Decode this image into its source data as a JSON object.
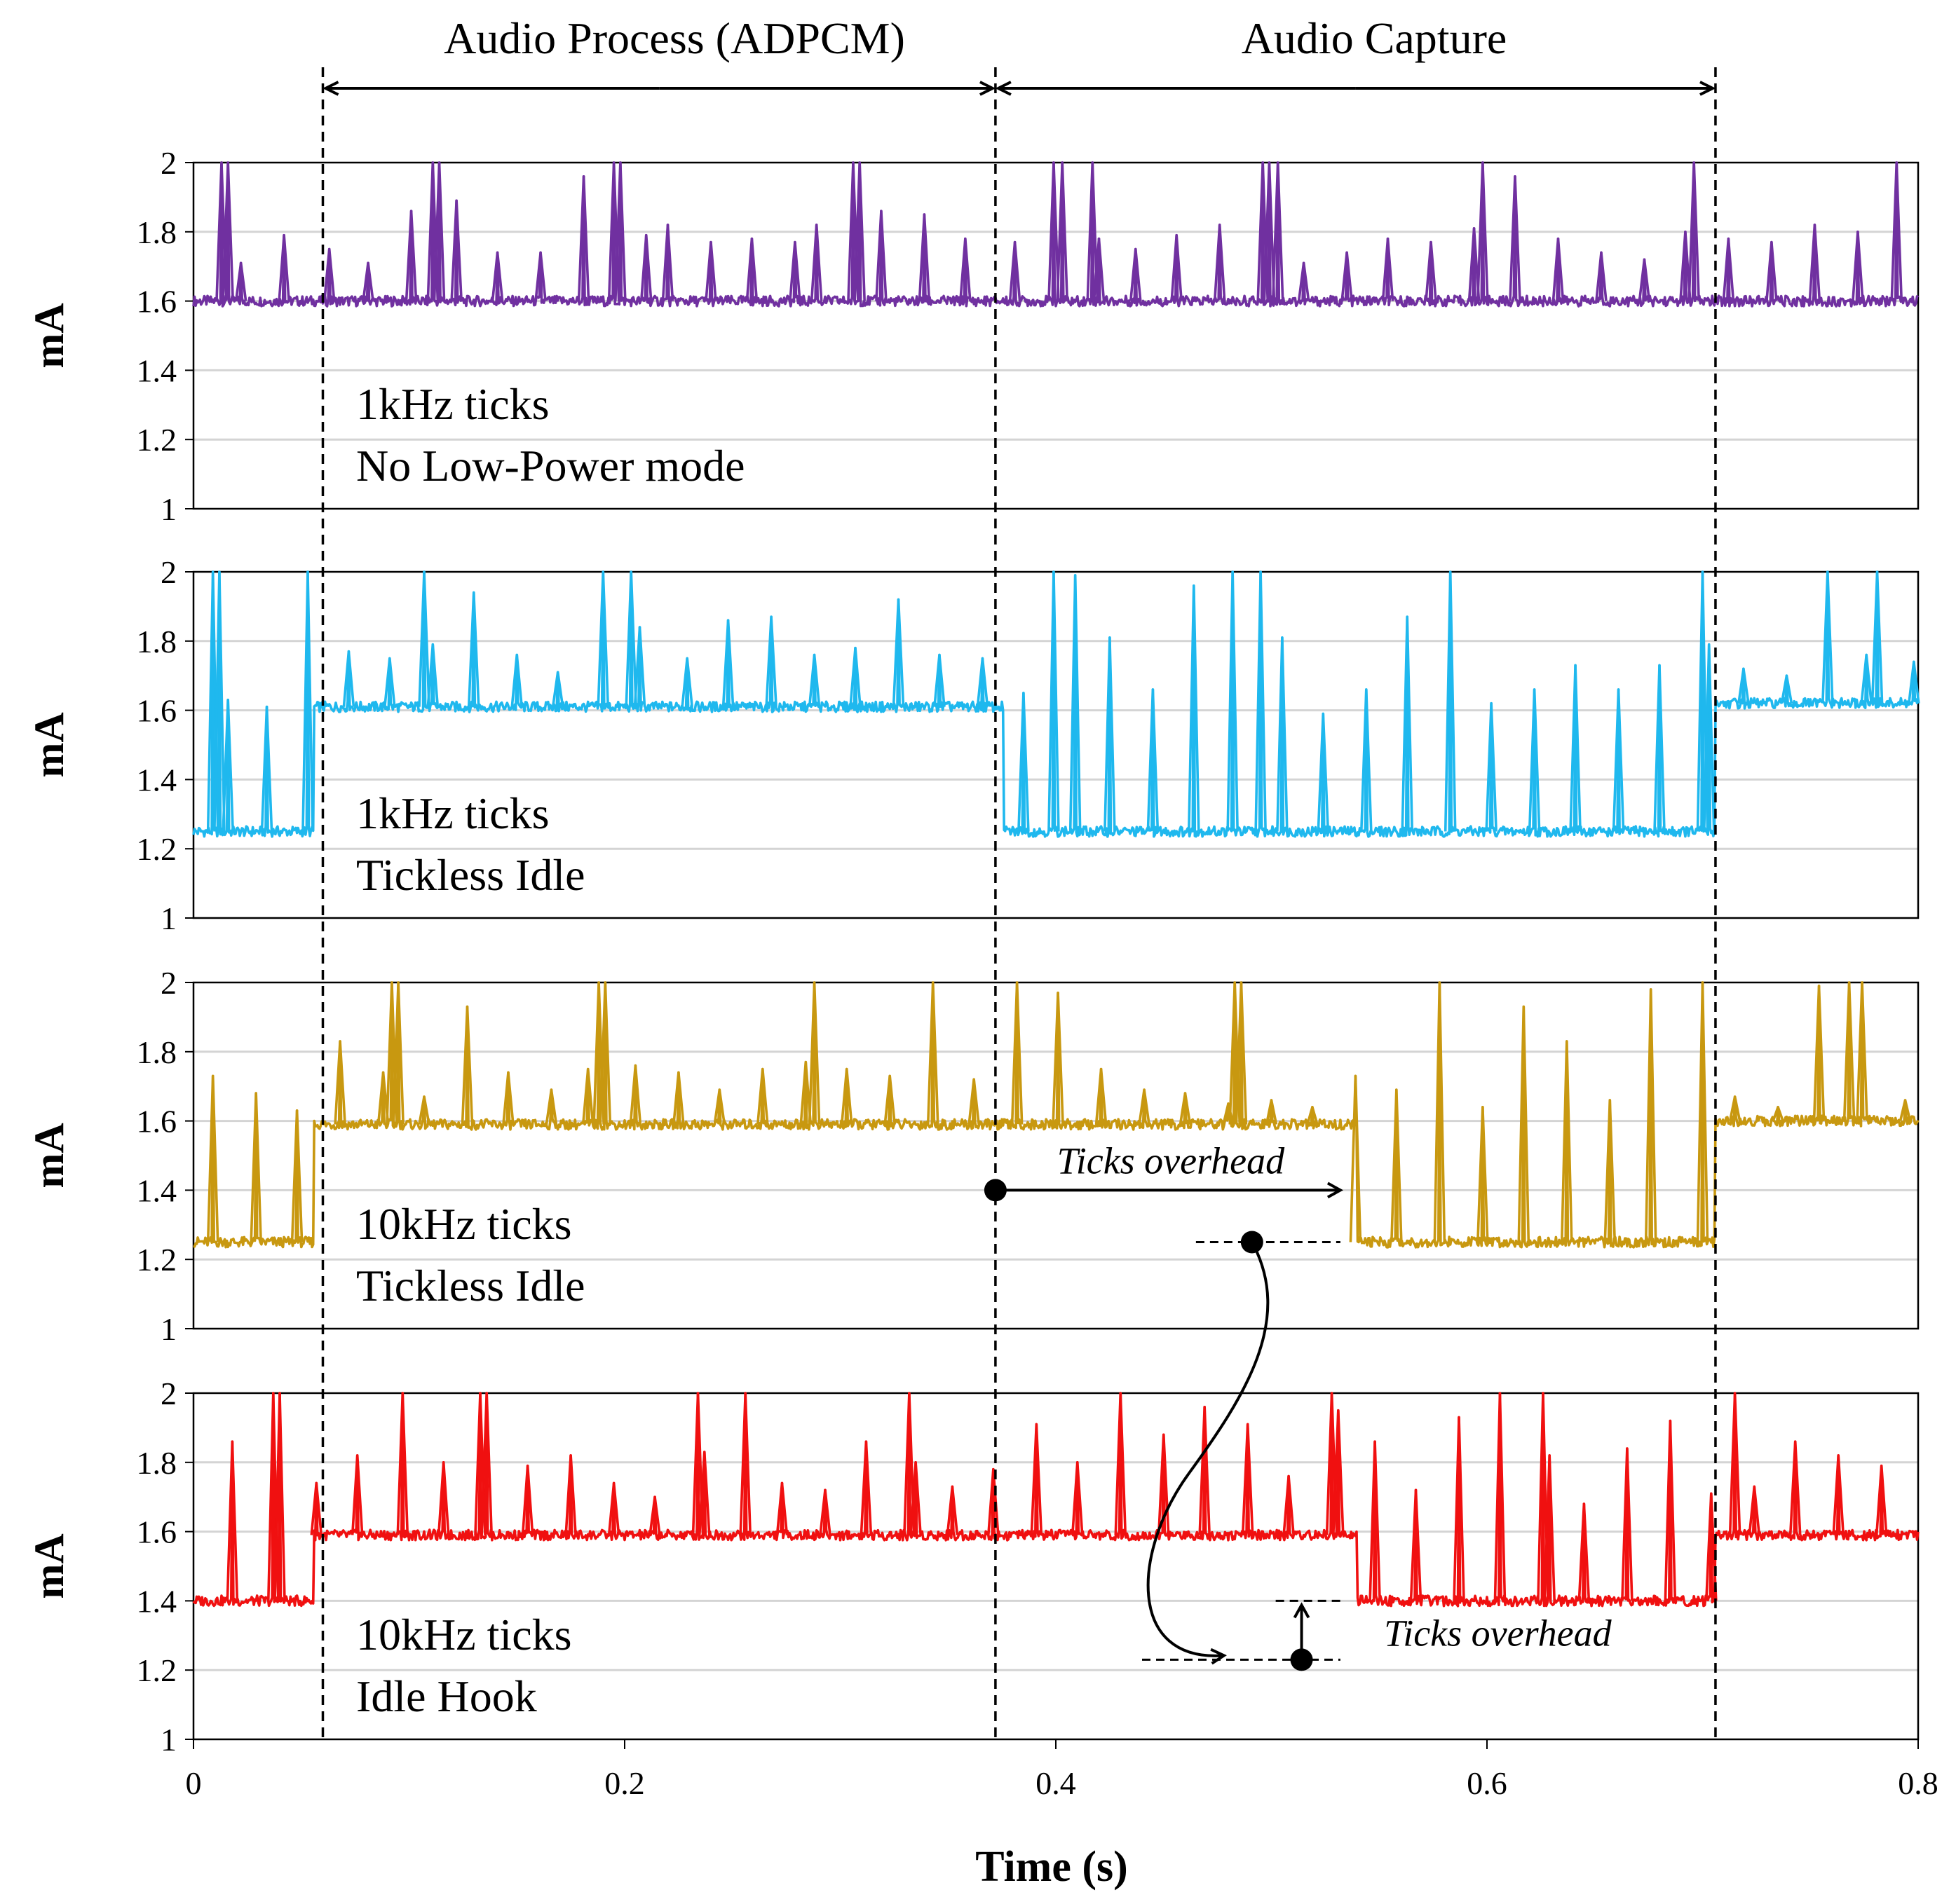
{
  "chart_data": {
    "type": "line",
    "xlabel": "Time (s)",
    "xlim": [
      0,
      0.8
    ],
    "xticks": [
      "0",
      "0.2",
      "0.4",
      "0.6",
      "0.8"
    ],
    "xtick_values": [
      0,
      0.2,
      0.4,
      0.6,
      0.8
    ],
    "ylabel": "mA",
    "ylim": [
      1,
      2
    ],
    "yticks": [
      "1",
      "1.2",
      "1.4",
      "1.6",
      "1.8",
      "2"
    ],
    "ytick_values": [
      1,
      1.2,
      1.4,
      1.6,
      1.8,
      2
    ],
    "grid": true,
    "phases": [
      {
        "label": "Audio Process (ADPCM)",
        "start": 0.06,
        "end": 0.372
      },
      {
        "label": "Audio Capture",
        "start": 0.372,
        "end": 0.706
      }
    ],
    "panels": [
      {
        "line1": "1kHz ticks",
        "line2": "No Low-Power mode",
        "color": "#7030a0",
        "segments": [
          {
            "start": 0,
            "end": 0.8,
            "base": 1.6
          }
        ],
        "spikes": [
          {
            "t": 0.013,
            "h": 2.0
          },
          {
            "t": 0.016,
            "h": 2.0
          },
          {
            "t": 0.022,
            "h": 1.71
          },
          {
            "t": 0.042,
            "h": 1.79
          },
          {
            "t": 0.063,
            "h": 1.75
          },
          {
            "t": 0.081,
            "h": 1.71
          },
          {
            "t": 0.101,
            "h": 1.86
          },
          {
            "t": 0.111,
            "h": 2.0
          },
          {
            "t": 0.114,
            "h": 2.0
          },
          {
            "t": 0.122,
            "h": 1.89
          },
          {
            "t": 0.141,
            "h": 1.74
          },
          {
            "t": 0.161,
            "h": 1.74
          },
          {
            "t": 0.181,
            "h": 1.96
          },
          {
            "t": 0.195,
            "h": 2.0
          },
          {
            "t": 0.198,
            "h": 2.0
          },
          {
            "t": 0.21,
            "h": 1.79
          },
          {
            "t": 0.22,
            "h": 1.82
          },
          {
            "t": 0.24,
            "h": 1.77
          },
          {
            "t": 0.259,
            "h": 1.78
          },
          {
            "t": 0.279,
            "h": 1.77
          },
          {
            "t": 0.289,
            "h": 1.82
          },
          {
            "t": 0.306,
            "h": 2.0
          },
          {
            "t": 0.309,
            "h": 2.0
          },
          {
            "t": 0.319,
            "h": 1.86
          },
          {
            "t": 0.339,
            "h": 1.85
          },
          {
            "t": 0.358,
            "h": 1.78
          },
          {
            "t": 0.381,
            "h": 1.77
          },
          {
            "t": 0.399,
            "h": 2.0
          },
          {
            "t": 0.403,
            "h": 2.0
          },
          {
            "t": 0.417,
            "h": 2.0
          },
          {
            "t": 0.42,
            "h": 1.78
          },
          {
            "t": 0.437,
            "h": 1.75
          },
          {
            "t": 0.456,
            "h": 1.79
          },
          {
            "t": 0.476,
            "h": 1.82
          },
          {
            "t": 0.496,
            "h": 2.0
          },
          {
            "t": 0.499,
            "h": 2.0
          },
          {
            "t": 0.503,
            "h": 2.0
          },
          {
            "t": 0.515,
            "h": 1.71
          },
          {
            "t": 0.535,
            "h": 1.74
          },
          {
            "t": 0.554,
            "h": 1.78
          },
          {
            "t": 0.574,
            "h": 1.77
          },
          {
            "t": 0.594,
            "h": 1.81
          },
          {
            "t": 0.598,
            "h": 2.0
          },
          {
            "t": 0.613,
            "h": 1.96
          },
          {
            "t": 0.633,
            "h": 1.78
          },
          {
            "t": 0.653,
            "h": 1.74
          },
          {
            "t": 0.673,
            "h": 1.72
          },
          {
            "t": 0.692,
            "h": 1.8
          },
          {
            "t": 0.696,
            "h": 2.0
          },
          {
            "t": 0.712,
            "h": 1.78
          },
          {
            "t": 0.732,
            "h": 1.77
          },
          {
            "t": 0.752,
            "h": 1.82
          },
          {
            "t": 0.772,
            "h": 1.8
          },
          {
            "t": 0.79,
            "h": 2.0
          }
        ]
      },
      {
        "line1": "1kHz ticks",
        "line2": "Tickless Idle",
        "color": "#1fb8ee",
        "segments": [
          {
            "start": 0,
            "end": 0.052,
            "base": 1.25
          },
          {
            "start": 0.056,
            "end": 0.372,
            "base": 1.61
          },
          {
            "start": 0.376,
            "end": 0.702,
            "base": 1.25
          },
          {
            "start": 0.706,
            "end": 0.8,
            "base": 1.62
          }
        ],
        "spikes": [
          {
            "t": 0.009,
            "h": 2.0
          },
          {
            "t": 0.012,
            "h": 2.0
          },
          {
            "t": 0.016,
            "h": 1.63
          },
          {
            "t": 0.034,
            "h": 1.61
          },
          {
            "t": 0.053,
            "h": 2.0
          },
          {
            "t": 0.072,
            "h": 1.77
          },
          {
            "t": 0.091,
            "h": 1.75
          },
          {
            "t": 0.107,
            "h": 2.0
          },
          {
            "t": 0.111,
            "h": 1.79
          },
          {
            "t": 0.13,
            "h": 1.94
          },
          {
            "t": 0.15,
            "h": 1.76
          },
          {
            "t": 0.169,
            "h": 1.71
          },
          {
            "t": 0.19,
            "h": 2.0
          },
          {
            "t": 0.203,
            "h": 2.0
          },
          {
            "t": 0.207,
            "h": 1.84
          },
          {
            "t": 0.229,
            "h": 1.75
          },
          {
            "t": 0.248,
            "h": 1.86
          },
          {
            "t": 0.268,
            "h": 1.87
          },
          {
            "t": 0.288,
            "h": 1.76
          },
          {
            "t": 0.307,
            "h": 1.78
          },
          {
            "t": 0.327,
            "h": 1.92
          },
          {
            "t": 0.346,
            "h": 1.76
          },
          {
            "t": 0.366,
            "h": 1.75
          },
          {
            "t": 0.385,
            "h": 1.65
          },
          {
            "t": 0.399,
            "h": 2.0
          },
          {
            "t": 0.409,
            "h": 1.99
          },
          {
            "t": 0.425,
            "h": 1.81
          },
          {
            "t": 0.445,
            "h": 1.66
          },
          {
            "t": 0.464,
            "h": 1.96
          },
          {
            "t": 0.482,
            "h": 2.0
          },
          {
            "t": 0.495,
            "h": 2.0
          },
          {
            "t": 0.505,
            "h": 1.81
          },
          {
            "t": 0.524,
            "h": 1.59
          },
          {
            "t": 0.544,
            "h": 1.66
          },
          {
            "t": 0.563,
            "h": 1.87
          },
          {
            "t": 0.583,
            "h": 2.0
          },
          {
            "t": 0.602,
            "h": 1.62
          },
          {
            "t": 0.622,
            "h": 1.66
          },
          {
            "t": 0.641,
            "h": 1.73
          },
          {
            "t": 0.661,
            "h": 1.66
          },
          {
            "t": 0.68,
            "h": 1.73
          },
          {
            "t": 0.7,
            "h": 2.0
          },
          {
            "t": 0.703,
            "h": 1.79
          },
          {
            "t": 0.719,
            "h": 1.72
          },
          {
            "t": 0.739,
            "h": 1.7
          },
          {
            "t": 0.758,
            "h": 2.0
          },
          {
            "t": 0.776,
            "h": 1.76
          },
          {
            "t": 0.781,
            "h": 2.0
          },
          {
            "t": 0.798,
            "h": 1.74
          }
        ]
      },
      {
        "line1": "10kHz ticks",
        "line2": "Tickless Idle",
        "color": "#c89810",
        "segments": [
          {
            "start": 0,
            "end": 0.052,
            "base": 1.25
          },
          {
            "start": 0.056,
            "end": 0.536,
            "base": 1.59
          },
          {
            "start": 0.54,
            "end": 0.702,
            "base": 1.25
          },
          {
            "start": 0.706,
            "end": 0.8,
            "base": 1.6
          }
        ],
        "spikes": [
          {
            "t": 0.009,
            "h": 1.73
          },
          {
            "t": 0.029,
            "h": 1.68
          },
          {
            "t": 0.048,
            "h": 1.63
          },
          {
            "t": 0.068,
            "h": 1.83
          },
          {
            "t": 0.088,
            "h": 1.74
          },
          {
            "t": 0.092,
            "h": 2.0
          },
          {
            "t": 0.095,
            "h": 2.0
          },
          {
            "t": 0.107,
            "h": 1.67
          },
          {
            "t": 0.127,
            "h": 1.93
          },
          {
            "t": 0.146,
            "h": 1.74
          },
          {
            "t": 0.166,
            "h": 1.69
          },
          {
            "t": 0.183,
            "h": 1.75
          },
          {
            "t": 0.188,
            "h": 2.0
          },
          {
            "t": 0.191,
            "h": 2.0
          },
          {
            "t": 0.205,
            "h": 1.76
          },
          {
            "t": 0.225,
            "h": 1.74
          },
          {
            "t": 0.244,
            "h": 1.69
          },
          {
            "t": 0.264,
            "h": 1.75
          },
          {
            "t": 0.284,
            "h": 1.77
          },
          {
            "t": 0.288,
            "h": 2.0
          },
          {
            "t": 0.303,
            "h": 1.75
          },
          {
            "t": 0.323,
            "h": 1.73
          },
          {
            "t": 0.343,
            "h": 2.0
          },
          {
            "t": 0.362,
            "h": 1.72
          },
          {
            "t": 0.382,
            "h": 2.0
          },
          {
            "t": 0.401,
            "h": 1.97
          },
          {
            "t": 0.421,
            "h": 1.75
          },
          {
            "t": 0.441,
            "h": 1.69
          },
          {
            "t": 0.46,
            "h": 1.68
          },
          {
            "t": 0.48,
            "h": 1.65
          },
          {
            "t": 0.483,
            "h": 2.0
          },
          {
            "t": 0.486,
            "h": 2.0
          },
          {
            "t": 0.5,
            "h": 1.66
          },
          {
            "t": 0.519,
            "h": 1.64
          },
          {
            "t": 0.539,
            "h": 1.73
          },
          {
            "t": 0.558,
            "h": 1.69
          },
          {
            "t": 0.578,
            "h": 2.0
          },
          {
            "t": 0.598,
            "h": 1.64
          },
          {
            "t": 0.617,
            "h": 1.93
          },
          {
            "t": 0.637,
            "h": 1.83
          },
          {
            "t": 0.657,
            "h": 1.66
          },
          {
            "t": 0.676,
            "h": 1.98
          },
          {
            "t": 0.7,
            "h": 2.0
          },
          {
            "t": 0.715,
            "h": 1.67
          },
          {
            "t": 0.735,
            "h": 1.64
          },
          {
            "t": 0.754,
            "h": 1.99
          },
          {
            "t": 0.768,
            "h": 2.0
          },
          {
            "t": 0.774,
            "h": 2.0
          },
          {
            "t": 0.794,
            "h": 1.66
          }
        ]
      },
      {
        "line1": "10kHz ticks",
        "line2": "Idle Hook",
        "color": "#f01010",
        "segments": [
          {
            "start": 0,
            "end": 0.052,
            "base": 1.4
          },
          {
            "start": 0.056,
            "end": 0.536,
            "base": 1.59
          },
          {
            "start": 0.54,
            "end": 0.702,
            "base": 1.4
          },
          {
            "start": 0.706,
            "end": 0.8,
            "base": 1.59
          }
        ],
        "spikes": [
          {
            "t": 0.018,
            "h": 1.86
          },
          {
            "t": 0.037,
            "h": 2.0
          },
          {
            "t": 0.04,
            "h": 2.0
          },
          {
            "t": 0.057,
            "h": 1.74
          },
          {
            "t": 0.076,
            "h": 1.82
          },
          {
            "t": 0.097,
            "h": 2.0
          },
          {
            "t": 0.116,
            "h": 1.8
          },
          {
            "t": 0.133,
            "h": 2.0
          },
          {
            "t": 0.136,
            "h": 2.0
          },
          {
            "t": 0.155,
            "h": 1.79
          },
          {
            "t": 0.175,
            "h": 1.82
          },
          {
            "t": 0.195,
            "h": 1.74
          },
          {
            "t": 0.214,
            "h": 1.7
          },
          {
            "t": 0.234,
            "h": 2.0
          },
          {
            "t": 0.237,
            "h": 1.83
          },
          {
            "t": 0.256,
            "h": 2.0
          },
          {
            "t": 0.273,
            "h": 1.74
          },
          {
            "t": 0.293,
            "h": 1.72
          },
          {
            "t": 0.312,
            "h": 1.86
          },
          {
            "t": 0.332,
            "h": 2.0
          },
          {
            "t": 0.335,
            "h": 1.8
          },
          {
            "t": 0.352,
            "h": 1.73
          },
          {
            "t": 0.371,
            "h": 1.78
          },
          {
            "t": 0.391,
            "h": 1.91
          },
          {
            "t": 0.41,
            "h": 1.8
          },
          {
            "t": 0.43,
            "h": 2.0
          },
          {
            "t": 0.45,
            "h": 1.88
          },
          {
            "t": 0.469,
            "h": 1.96
          },
          {
            "t": 0.489,
            "h": 1.91
          },
          {
            "t": 0.508,
            "h": 1.76
          },
          {
            "t": 0.528,
            "h": 2.0
          },
          {
            "t": 0.531,
            "h": 1.95
          },
          {
            "t": 0.548,
            "h": 1.86
          },
          {
            "t": 0.567,
            "h": 1.72
          },
          {
            "t": 0.587,
            "h": 1.93
          },
          {
            "t": 0.606,
            "h": 2.0
          },
          {
            "t": 0.626,
            "h": 2.0
          },
          {
            "t": 0.629,
            "h": 1.82
          },
          {
            "t": 0.645,
            "h": 1.68
          },
          {
            "t": 0.665,
            "h": 1.84
          },
          {
            "t": 0.685,
            "h": 1.92
          },
          {
            "t": 0.704,
            "h": 1.71
          },
          {
            "t": 0.715,
            "h": 2.0
          },
          {
            "t": 0.724,
            "h": 1.73
          },
          {
            "t": 0.743,
            "h": 1.86
          },
          {
            "t": 0.763,
            "h": 1.82
          },
          {
            "t": 0.783,
            "h": 1.79
          }
        ]
      }
    ],
    "annotations": [
      {
        "text": "Ticks overhead",
        "panel": 2,
        "kind": "horizontal",
        "from_t": 0.372,
        "to_t": 0.532,
        "at_ma": 1.4
      },
      {
        "text": "Ticks overhead",
        "panel": 3,
        "kind": "vertical",
        "at_t": 0.514,
        "from_ma": 1.23,
        "to_ma": 1.4
      }
    ]
  }
}
